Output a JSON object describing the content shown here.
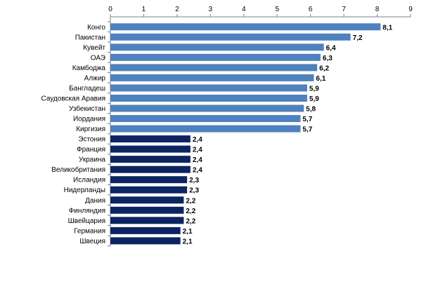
{
  "chart_data": {
    "type": "bar",
    "orientation": "horizontal",
    "xaxis_position": "top",
    "categories": [
      "Конго",
      "Пакистан",
      "Кувейт",
      "ОАЭ",
      "Камбоджа",
      "Алжир",
      "Бангладеш",
      "Саудовская Аравия",
      "Узбекистан",
      "Иордания",
      "Киргизия",
      "Эстония",
      "Франция",
      "Украина",
      "Великобритания",
      "Исландия",
      "Нидерланды",
      "Дания",
      "Финляндия",
      "Швейцария",
      "Германия",
      "Швеция"
    ],
    "values": [
      8.1,
      7.2,
      6.4,
      6.3,
      6.2,
      6.1,
      5.9,
      5.9,
      5.8,
      5.7,
      5.7,
      2.4,
      2.4,
      2.4,
      2.4,
      2.3,
      2.3,
      2.2,
      2.2,
      2.2,
      2.1,
      2.1
    ],
    "value_labels": [
      "8,1",
      "7,2",
      "6,4",
      "6,3",
      "6,2",
      "6,1",
      "5,9",
      "5,9",
      "5,8",
      "5,7",
      "5,7",
      "2,4",
      "2,4",
      "2,4",
      "2,4",
      "2,3",
      "2,3",
      "2,2",
      "2,2",
      "2,2",
      "2,1",
      "2,1"
    ],
    "xlim": [
      0,
      9
    ],
    "xticks": [
      "0",
      "1",
      "2",
      "3",
      "4",
      "5",
      "6",
      "7",
      "8",
      "9"
    ],
    "grid": false,
    "colors": {
      "high": "#4f81bd",
      "low": "#0d2463"
    },
    "high_count": 11
  }
}
